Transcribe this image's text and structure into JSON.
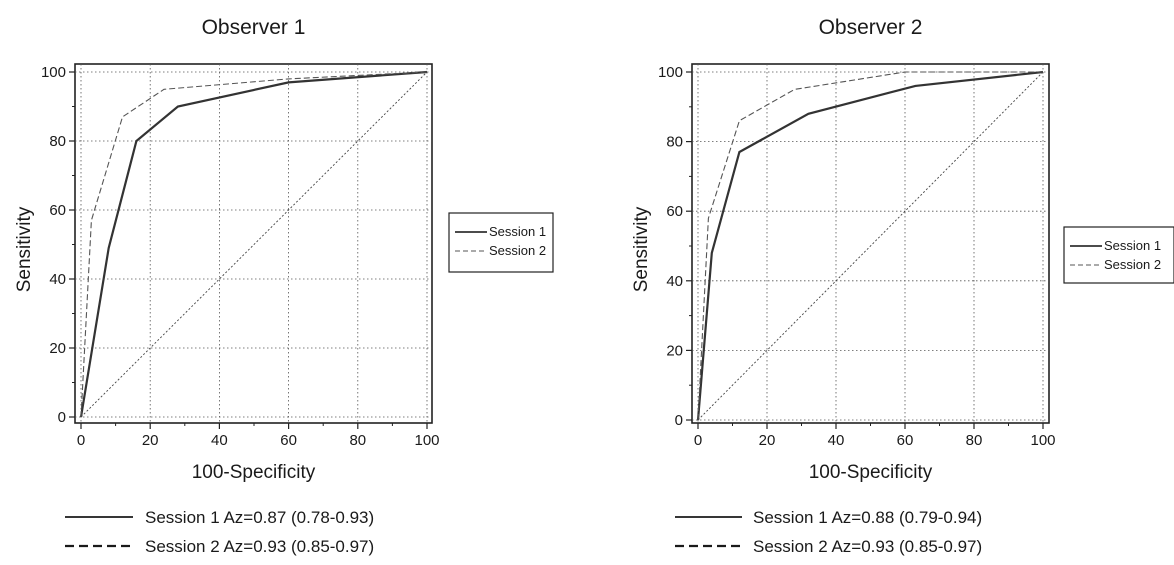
{
  "chart_data": [
    {
      "type": "line",
      "title": "Observer 1",
      "xlabel": "100-Specificity",
      "ylabel": "Sensitivity",
      "xlim": [
        0,
        100
      ],
      "ylim": [
        0,
        100
      ],
      "x_ticks": [
        "0",
        "20",
        "40",
        "60",
        "80",
        "100"
      ],
      "y_ticks": [
        "0",
        "20",
        "40",
        "60",
        "80",
        "100"
      ],
      "grid": true,
      "reference_line": true,
      "legend": {
        "position": "right",
        "entries": [
          "Session 1",
          "Session 2"
        ]
      },
      "series": [
        {
          "name": "Session 1",
          "style": "solid",
          "x": [
            0,
            8,
            16,
            28,
            60,
            100
          ],
          "y": [
            0,
            49,
            80,
            90,
            97,
            100
          ]
        },
        {
          "name": "Session 2",
          "style": "dashed",
          "x": [
            0,
            3,
            12,
            24,
            60,
            100
          ],
          "y": [
            0,
            57,
            87,
            95,
            98,
            100
          ]
        }
      ],
      "annotations": [
        {
          "style": "solid",
          "text": "Session 1 Az=0.87 (0.78-0.93)"
        },
        {
          "style": "dashed",
          "text": "Session 2 Az=0.93 (0.85-0.97)"
        }
      ]
    },
    {
      "type": "line",
      "title": "Observer 2",
      "xlabel": "100-Specificity",
      "ylabel": "Sensitivity",
      "xlim": [
        0,
        100
      ],
      "ylim": [
        0,
        100
      ],
      "x_ticks": [
        "0",
        "20",
        "40",
        "60",
        "80",
        "100"
      ],
      "y_ticks": [
        "0",
        "20",
        "40",
        "60",
        "80",
        "100"
      ],
      "grid": true,
      "reference_line": true,
      "legend": {
        "position": "right",
        "entries": [
          "Session 1",
          "Session 2"
        ]
      },
      "series": [
        {
          "name": "Session 1",
          "style": "solid",
          "x": [
            0,
            4,
            12,
            32,
            63,
            100
          ],
          "y": [
            0,
            48,
            77,
            88,
            96,
            100
          ]
        },
        {
          "name": "Session 2",
          "style": "dashed",
          "x": [
            0,
            3,
            12,
            28,
            60,
            100
          ],
          "y": [
            0,
            58,
            86,
            95,
            100,
            100
          ]
        }
      ],
      "annotations": [
        {
          "style": "solid",
          "text": "Session 1 Az=0.88 (0.79-0.94)"
        },
        {
          "style": "dashed",
          "text": "Session 2 Az=0.93 (0.85-0.97)"
        }
      ]
    }
  ]
}
